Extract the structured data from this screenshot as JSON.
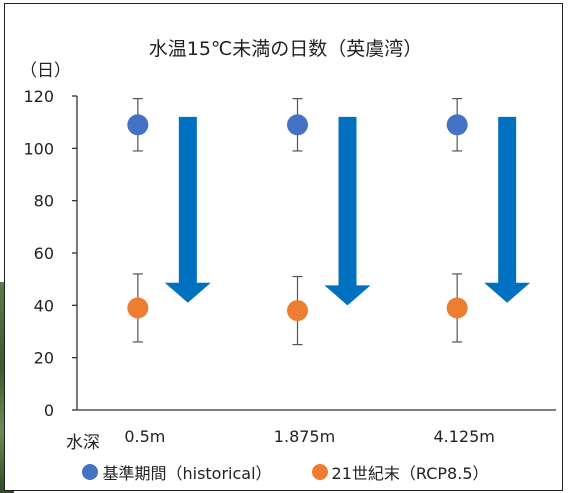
{
  "chart_data": {
    "type": "scatter",
    "title": "水温15℃未満の日数（英虞湾）",
    "ylabel": "（日）",
    "xlabel": "水深",
    "ylim": [
      0,
      120
    ],
    "yticks": [
      0,
      20,
      40,
      60,
      80,
      100,
      120
    ],
    "categories": [
      "0.5m",
      "1.875m",
      "4.125m"
    ],
    "series": [
      {
        "name": "基準期間（historical）",
        "color": "#4472C4",
        "values": [
          109,
          109,
          109
        ],
        "error_low": [
          99,
          99,
          99
        ],
        "error_high": [
          119,
          119,
          119
        ]
      },
      {
        "name": "21世紀末（RCP8.5）",
        "color": "#ED7D31",
        "values": [
          39,
          38,
          39
        ],
        "error_low": [
          26,
          25,
          26
        ],
        "error_high": [
          52,
          51,
          52
        ]
      }
    ],
    "arrow_color": "#0070C0",
    "grid": false,
    "legend_position": "bottom"
  }
}
